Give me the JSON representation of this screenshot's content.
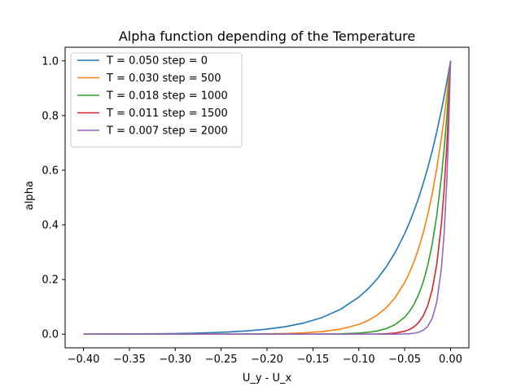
{
  "chart_data": {
    "type": "line",
    "title": "Alpha function depending of the Temperature",
    "xlabel": "U_y - U_x",
    "ylabel": "alpha",
    "xlim": [
      -0.42,
      0.02
    ],
    "ylim": [
      -0.05,
      1.05
    ],
    "x_ticks": [
      -0.4,
      -0.35,
      -0.3,
      -0.25,
      -0.2,
      -0.15,
      -0.1,
      -0.05,
      0.0
    ],
    "x_tick_labels": [
      "−0.40",
      "−0.35",
      "−0.30",
      "−0.25",
      "−0.20",
      "−0.15",
      "−0.10",
      "−0.05",
      "0.00"
    ],
    "y_ticks": [
      0.0,
      0.2,
      0.4,
      0.6,
      0.8,
      1.0
    ],
    "y_tick_labels": [
      "0.0",
      "0.2",
      "0.4",
      "0.6",
      "0.8",
      "1.0"
    ],
    "grid": false,
    "legend_position": "top-left",
    "x": [
      -0.4,
      -0.38,
      -0.36,
      -0.34,
      -0.32,
      -0.3,
      -0.28,
      -0.26,
      -0.24,
      -0.22,
      -0.2,
      -0.18,
      -0.16,
      -0.14,
      -0.12,
      -0.1,
      -0.09,
      -0.08,
      -0.07,
      -0.06,
      -0.05,
      -0.045,
      -0.04,
      -0.035,
      -0.03,
      -0.025,
      -0.02,
      -0.015,
      -0.01,
      -0.007,
      -0.004,
      -0.002,
      0.0
    ],
    "series": [
      {
        "name": "T = 0.050 step = 0",
        "color": "#1f77b4",
        "values": [
          0.0003,
          0.0005,
          0.0007,
          0.0011,
          0.0017,
          0.0025,
          0.0037,
          0.0055,
          0.0082,
          0.0123,
          0.0183,
          0.0273,
          0.0408,
          0.0608,
          0.0907,
          0.1353,
          0.1653,
          0.2019,
          0.2466,
          0.3012,
          0.3679,
          0.4066,
          0.4493,
          0.4966,
          0.5488,
          0.6065,
          0.6703,
          0.7408,
          0.8187,
          0.8694,
          0.9231,
          0.9608,
          1.0
        ]
      },
      {
        "name": "T = 0.030 step = 500",
        "color": "#ff7f0e",
        "values": [
          0.0,
          0.0,
          0.0,
          0.0,
          0.0,
          0.0,
          0.0001,
          0.0002,
          0.0003,
          0.0007,
          0.0013,
          0.0025,
          0.0048,
          0.0094,
          0.0183,
          0.0357,
          0.0498,
          0.0695,
          0.097,
          0.1353,
          0.1889,
          0.2231,
          0.2636,
          0.3114,
          0.3679,
          0.4346,
          0.5134,
          0.6065,
          0.7165,
          0.7919,
          0.8752,
          0.9355,
          1.0
        ]
      },
      {
        "name": "T = 0.018 step = 1000",
        "color": "#2ca02c",
        "values": [
          0.0,
          0.0,
          0.0,
          0.0,
          0.0,
          0.0,
          0.0,
          0.0,
          0.0,
          0.0,
          0.0,
          0.0,
          0.0001,
          0.0004,
          0.0013,
          0.0039,
          0.0067,
          0.0117,
          0.0205,
          0.0357,
          0.0622,
          0.0821,
          0.1084,
          0.1431,
          0.1889,
          0.2494,
          0.3292,
          0.4346,
          0.5738,
          0.6778,
          0.8007,
          0.8948,
          1.0
        ]
      },
      {
        "name": "T = 0.011 step = 1500",
        "color": "#d62728",
        "values": [
          0.0,
          0.0,
          0.0,
          0.0,
          0.0,
          0.0,
          0.0,
          0.0,
          0.0,
          0.0,
          0.0,
          0.0,
          0.0,
          0.0,
          0.0,
          0.0001,
          0.0003,
          0.0007,
          0.0017,
          0.0043,
          0.0106,
          0.0168,
          0.0264,
          0.0416,
          0.0655,
          0.103,
          0.1623,
          0.2556,
          0.4027,
          0.5286,
          0.6951,
          0.8338,
          1.0
        ]
      },
      {
        "name": "T = 0.007 step = 2000",
        "color": "#9467bd",
        "values": [
          0.0,
          0.0,
          0.0,
          0.0,
          0.0,
          0.0,
          0.0,
          0.0,
          0.0,
          0.0,
          0.0,
          0.0,
          0.0,
          0.0,
          0.0,
          0.0,
          0.0,
          0.0,
          0.0,
          0.0002,
          0.0008,
          0.0016,
          0.0033,
          0.0067,
          0.0137,
          0.0281,
          0.0574,
          0.1173,
          0.2397,
          0.3678,
          0.5647,
          0.7515,
          1.0
        ]
      }
    ]
  }
}
